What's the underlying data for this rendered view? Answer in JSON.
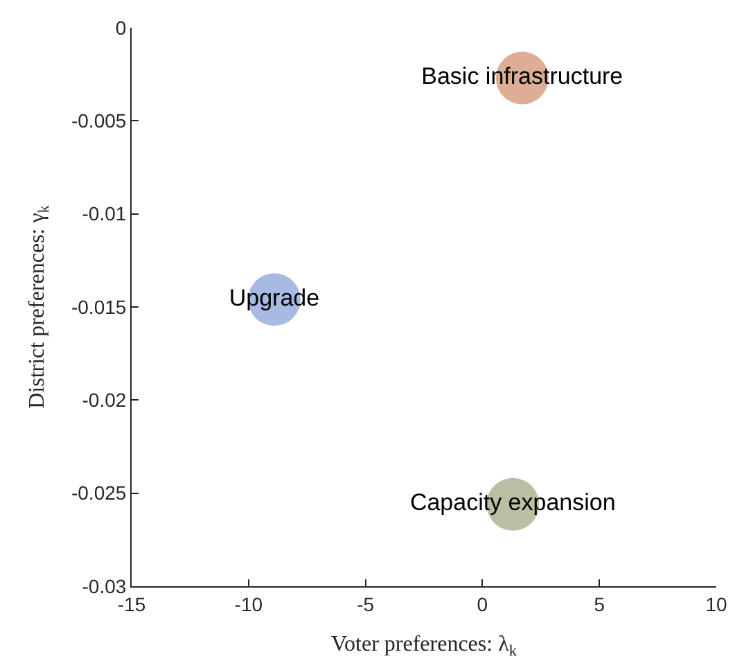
{
  "chart_data": {
    "type": "scatter",
    "xlabel": "Voter preferences: λ$_{k}$",
    "ylabel": "District preferences: γ$_{k}$",
    "series": [
      {
        "name": "Basic infrastructure",
        "color": "#d9a58a",
        "x": [
          1.7
        ],
        "values": [
          -0.0027
        ]
      },
      {
        "name": "Upgrade",
        "color": "#9db3e0",
        "x": [
          -8.9
        ],
        "values": [
          -0.0146
        ]
      },
      {
        "name": "Capacity expansion",
        "color": "#b0b898",
        "x": [
          1.3
        ],
        "values": [
          -0.0256
        ]
      }
    ],
    "xlim": [
      -15,
      10
    ],
    "xticks": [
      -15,
      -10,
      -5,
      0,
      5,
      10
    ],
    "ylim": [
      -0.03,
      0
    ],
    "yticks": [
      -0.03,
      -0.025,
      -0.02,
      -0.015,
      -0.01,
      -0.005,
      0
    ],
    "grid": false,
    "legend": false,
    "marker": "circle"
  }
}
